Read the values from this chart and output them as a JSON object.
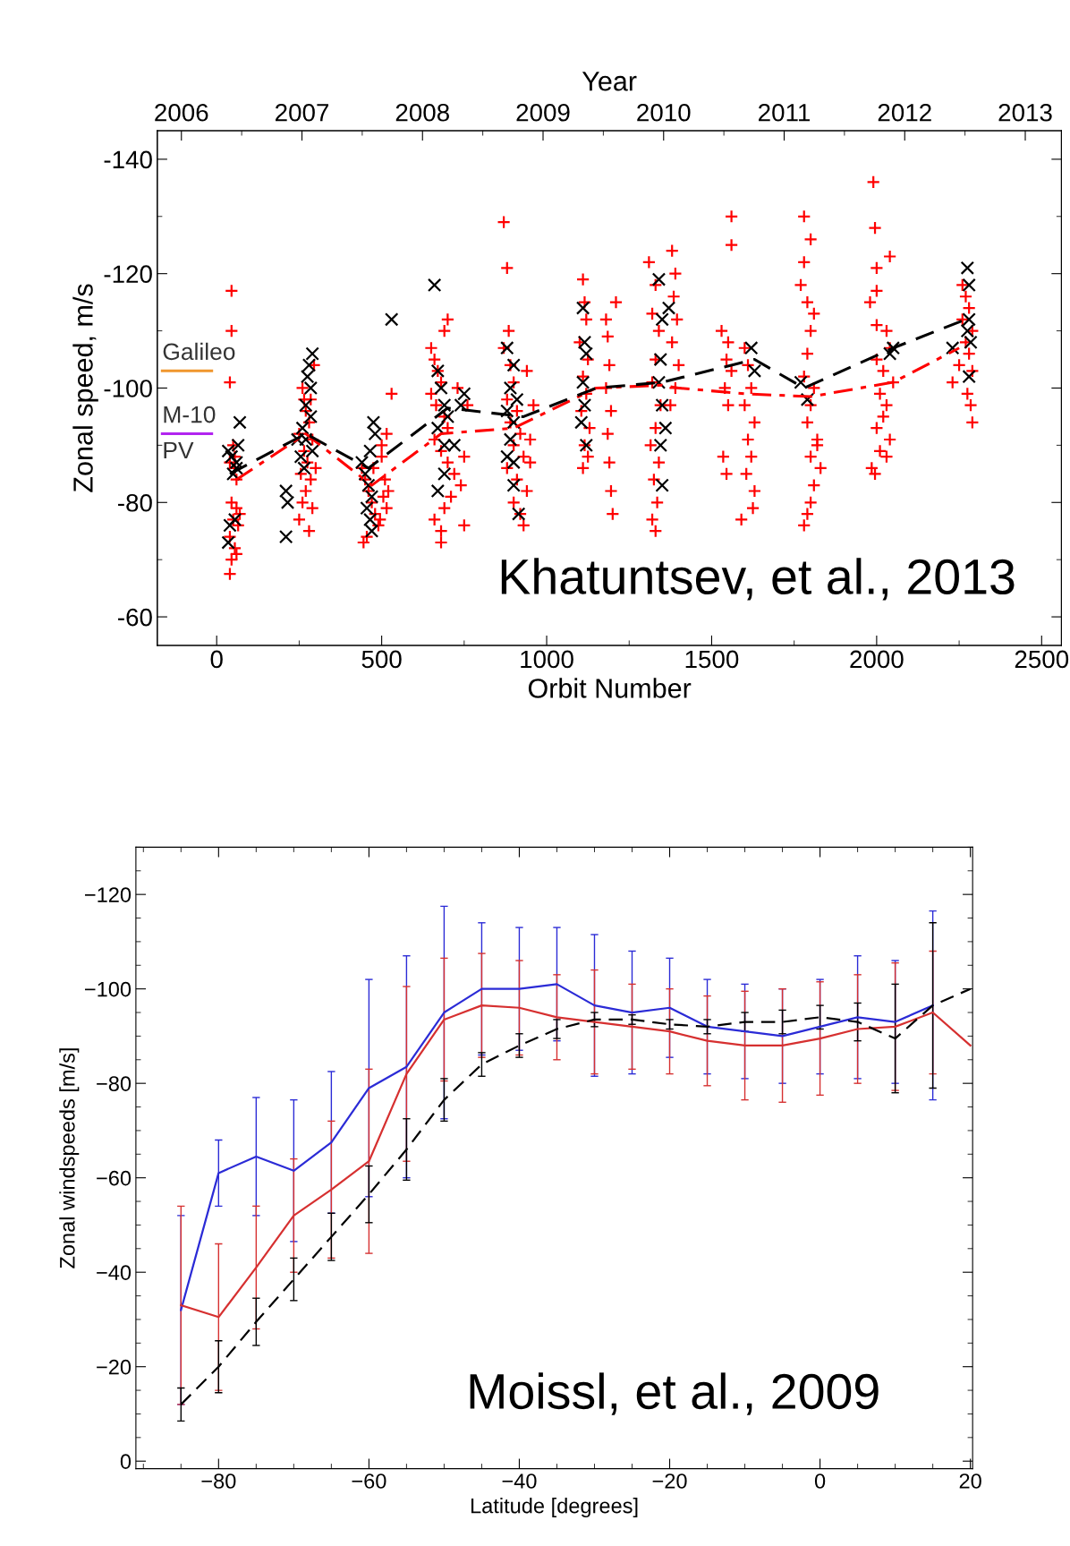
{
  "chart_data": [
    {
      "type": "scatter",
      "xlabel": "Orbit Number",
      "ylabel": "Zonal speed, m/s",
      "x2label": "Year",
      "xlim": [
        -180,
        2560
      ],
      "xticks": [
        0,
        500,
        1000,
        1500,
        2000,
        2500
      ],
      "ylim": [
        -55,
        -145
      ],
      "yticks": [
        -140,
        -120,
        -100,
        -80,
        -60
      ],
      "x2lim": [
        2005.8,
        2013.3
      ],
      "x2ticks": [
        2006,
        2007,
        2008,
        2009,
        2010,
        2011,
        2012,
        2013
      ],
      "grid": false,
      "legend": false,
      "annotations": [
        "Khatuntsev, et al., 2013",
        "PV"
      ],
      "series": [
        {
          "type": "scatter",
          "marker": "plus",
          "color": "#ff0000",
          "x": [
            45,
            45,
            40,
            50,
            40,
            55,
            60,
            45,
            60,
            50,
            65,
            40,
            55,
            45,
            60,
            40,
            55,
            70,
            260,
            270,
            280,
            290,
            265,
            275,
            255,
            285,
            270,
            260,
            290,
            250,
            280,
            295,
            300,
            250,
            265,
            285,
            440,
            450,
            460,
            470,
            480,
            490,
            455,
            445,
            500,
            500,
            510,
            520,
            515,
            495,
            505,
            530,
            515,
            475,
            650,
            660,
            670,
            680,
            650,
            665,
            690,
            700,
            660,
            680,
            700,
            720,
            740,
            710,
            690,
            660,
            680,
            680,
            750,
            690,
            700,
            760,
            730,
            750,
            870,
            880,
            885,
            870,
            890,
            900,
            880,
            910,
            890,
            920,
            900,
            930,
            880,
            910,
            940,
            900,
            920,
            930,
            950,
            960,
            940,
            950,
            1110,
            1115,
            1120,
            1100,
            1125,
            1110,
            1120,
            1105,
            1130,
            1115,
            1125,
            1110,
            1180,
            1185,
            1190,
            1180,
            1195,
            1185,
            1190,
            1195,
            1200,
            1210,
            1310,
            1330,
            1320,
            1340,
            1330,
            1320,
            1345,
            1330,
            1315,
            1340,
            1325,
            1335,
            1320,
            1330,
            1380,
            1390,
            1385,
            1395,
            1380,
            1400,
            1390,
            1375,
            1560,
            1560,
            1530,
            1550,
            1545,
            1560,
            1540,
            1550,
            1535,
            1545,
            1600,
            1610,
            1620,
            1600,
            1630,
            1610,
            1620,
            1605,
            1630,
            1625,
            1590,
            1780,
            1800,
            1780,
            1770,
            1790,
            1810,
            1800,
            1790,
            1780,
            1810,
            1800,
            1790,
            1820,
            1800,
            1830,
            1810,
            1800,
            1790,
            1780,
            1820,
            1990,
            1995,
            2000,
            2000,
            1980,
            2040,
            2000,
            2030,
            2040,
            2000,
            2020,
            2050,
            2010,
            2030,
            2020,
            2000,
            2040,
            2010,
            2030,
            1985,
            1995,
            2260,
            2270,
            2280,
            2260,
            2290,
            2270,
            2280,
            2250,
            2290,
            2230,
            2275,
            2285,
            2290
          ],
          "values": [
            -117,
            -110,
            -101,
            -90,
            -87,
            -86,
            -84,
            -80,
            -79,
            -77,
            -76,
            -74,
            -72,
            -70,
            -71,
            -67.5,
            -88,
            -78,
            -100,
            -96,
            -94,
            -91,
            -89,
            -87,
            -85,
            -84,
            -82,
            -80,
            -79,
            -77,
            -75,
            -104,
            -86,
            -92,
            -98,
            -98,
            -86,
            -84,
            -82,
            -80,
            -78,
            -76,
            -74,
            -73,
            -90,
            -88,
            -84,
            -82,
            -79,
            -77,
            -81,
            -99,
            -92,
            -86,
            -107,
            -105,
            -103,
            -101,
            -99,
            -97,
            -95,
            -93,
            -91,
            -89,
            -87,
            -85,
            -83,
            -81,
            -79,
            -77,
            -75,
            -73,
            -76,
            -110,
            -112,
            -97,
            -100,
            -88,
            -129,
            -121,
            -110,
            -107,
            -104,
            -101,
            -98,
            -96,
            -94,
            -92,
            -90,
            -88,
            -86,
            -84,
            -82,
            -80,
            -78,
            -76,
            -91,
            -97,
            -103,
            -87,
            -119,
            -115,
            -112,
            -108,
            -105,
            -102,
            -99,
            -96,
            -93,
            -90,
            -88,
            -86,
            -112,
            -109,
            -104,
            -100,
            -96,
            -92,
            -87,
            -82,
            -78,
            -115,
            -122,
            -118,
            -113,
            -110,
            -105,
            -101,
            -97,
            -93,
            -90,
            -87,
            -84,
            -80,
            -77,
            -75,
            -124,
            -120,
            -116,
            -112,
            -108,
            -104,
            -100,
            -97,
            -130,
            -125,
            -110,
            -108,
            -105,
            -103,
            -100,
            -97,
            -88,
            -85,
            -107,
            -104,
            -100,
            -97,
            -94,
            -91,
            -88,
            -85,
            -82,
            -79,
            -77,
            -130,
            -126,
            -122,
            -118,
            -115,
            -113,
            -110,
            -106,
            -102,
            -100,
            -97,
            -94,
            -91,
            -88,
            -86,
            -83,
            -80,
            -78,
            -76,
            -90,
            -136,
            -128,
            -121,
            -117,
            -115,
            -123,
            -111,
            -110,
            -107,
            -105,
            -103,
            -101,
            -99,
            -97,
            -95,
            -93,
            -91,
            -89,
            -88,
            -86,
            -85,
            -118,
            -116,
            -114,
            -112,
            -110,
            -108,
            -106,
            -104,
            -103,
            -101,
            -99,
            -97,
            -94
          ]
        },
        {
          "type": "scatter",
          "marker": "cross",
          "color": "#000000",
          "x": [
            35,
            45,
            50,
            60,
            65,
            70,
            40,
            55,
            35,
            60,
            210,
            215,
            210,
            245,
            255,
            260,
            270,
            275,
            280,
            290,
            285,
            270,
            265,
            285,
            290,
            440,
            450,
            460,
            470,
            455,
            465,
            470,
            475,
            465,
            480,
            530,
            660,
            670,
            680,
            690,
            700,
            670,
            690,
            670,
            720,
            740,
            750,
            690,
            880,
            900,
            890,
            880,
            900,
            890,
            910,
            880,
            900,
            915,
            900,
            1110,
            1115,
            1120,
            1110,
            1115,
            1105,
            1120,
            1340,
            1350,
            1345,
            1340,
            1350,
            1360,
            1345,
            1350,
            1370,
            1620,
            1630,
            1770,
            1790,
            2050,
            2040,
            2230,
            2275,
            2280,
            2280,
            2275,
            2285,
            2280
          ],
          "values": [
            -89,
            -88,
            -85,
            -87,
            -90,
            -94,
            -76,
            -77,
            -73,
            -86,
            -82,
            -80,
            -74,
            -91,
            -88,
            -93,
            -97,
            -102,
            -104,
            -106,
            -100,
            -91,
            -86,
            -95,
            -89,
            -87,
            -85,
            -83,
            -81,
            -79,
            -77,
            -75,
            -94,
            -89,
            -92,
            -112,
            -118,
            -103,
            -100,
            -97,
            -95,
            -93,
            -85,
            -82,
            -90,
            -97,
            -99,
            -90,
            -107,
            -104,
            -100,
            -96,
            -94,
            -91,
            -98,
            -88,
            -83,
            -78,
            -87,
            -114,
            -108,
            -106,
            -101,
            -97,
            -94,
            -90,
            -119,
            -112,
            -105,
            -101,
            -97,
            -93,
            -90,
            -83,
            -114,
            -107,
            -103,
            -101,
            -98,
            -107,
            -106,
            -107,
            -121,
            -118,
            -112,
            -110,
            -108,
            -102
          ]
        },
        {
          "type": "line",
          "line_style": "dashdot",
          "color": "#ff0000",
          "x": [
            60,
            270,
            470,
            680,
            900,
            1150,
            1350,
            1400,
            1600,
            1800,
            2050,
            2250
          ],
          "values": [
            -84,
            -92,
            -83,
            -92,
            -93,
            -100,
            -100.5,
            -100,
            -99,
            -98.5,
            -101,
            -107
          ]
        },
        {
          "type": "line",
          "line_style": "dashed",
          "color": "#000000",
          "x": [
            40,
            270,
            460,
            700,
            930,
            1150,
            1350,
            1630,
            1780,
            2050,
            2270
          ],
          "values": [
            -85,
            -92,
            -86,
            -96.5,
            -95,
            -100,
            -101,
            -105,
            -100,
            -107,
            -112
          ]
        },
        {
          "type": "line",
          "name": "Galileo",
          "line_style": "solid",
          "color": "#f0962e",
          "x": [
            -165,
            -15
          ],
          "values": [
            -103,
            -103
          ]
        },
        {
          "type": "line",
          "name": "M-10",
          "line_style": "solid",
          "color": "#b224f0",
          "x": [
            -165,
            -15
          ],
          "values": [
            -92,
            -92
          ]
        }
      ]
    },
    {
      "type": "line",
      "xlabel": "Latitude [degrees]",
      "ylabel": "Zonal windspeeds [m/s]",
      "xlim": [
        -91,
        20.3
      ],
      "xticks": [
        {
          "value": -80,
          "label": "−80"
        },
        {
          "value": -60,
          "label": "−60"
        },
        {
          "value": -40,
          "label": "−40"
        },
        {
          "value": -20,
          "label": "−20"
        },
        0,
        20
      ],
      "ylim": [
        1.6,
        -130
      ],
      "yticks": [
        0,
        {
          "value": -20,
          "label": "−20"
        },
        {
          "value": -40,
          "label": "−40"
        },
        {
          "value": -60,
          "label": "−60"
        },
        {
          "value": -80,
          "label": "−80"
        },
        {
          "value": -100,
          "label": "−100"
        },
        {
          "value": -120,
          "label": "−120"
        }
      ],
      "grid": false,
      "legend": false,
      "marker": "none",
      "annotations": [
        "Moissl, et al., 2009"
      ],
      "series": [
        {
          "color": "#2b2bd6",
          "line_style": "solid",
          "x": [
            -85,
            -80,
            -75,
            -70,
            -65,
            -60,
            -55,
            -50,
            -45,
            -40,
            -35,
            -30,
            -25,
            -20,
            -15,
            -10,
            -5,
            0,
            5,
            10,
            15
          ],
          "values": [
            -32,
            -61,
            -64.5,
            -61.5,
            -67.5,
            -79,
            -83.5,
            -95,
            -100,
            -100,
            -101,
            -96.5,
            -95,
            -96,
            -92,
            -91,
            -90,
            -92,
            -94,
            -93,
            -96.5
          ],
          "errors": [
            20,
            7,
            12.5,
            15,
            15,
            23,
            23.5,
            22.5,
            14,
            13,
            12,
            15,
            13,
            10.5,
            10,
            10,
            10,
            10,
            13,
            13,
            20
          ]
        },
        {
          "color": "#d63030",
          "line_style": "solid",
          "x": [
            -85,
            -80,
            -75,
            -70,
            -65,
            -60,
            -55,
            -50,
            -45,
            -40,
            -35,
            -30,
            -25,
            -20,
            -15,
            -10,
            -5,
            0,
            5,
            10,
            15,
            20
          ],
          "values": [
            -33,
            -30.5,
            -41,
            -52,
            -57.5,
            -63.5,
            -82,
            -93.5,
            -96.5,
            -96,
            -94,
            -93,
            -92,
            -91,
            -89,
            -88,
            -88,
            -89.5,
            -91.5,
            -92,
            -95,
            -88
          ],
          "errors": [
            21,
            15.5,
            13,
            12,
            14.5,
            19.5,
            18.5,
            13,
            11,
            10,
            9,
            11,
            9,
            9,
            9.5,
            11.5,
            12,
            12,
            11.5,
            13.5,
            13,
            null
          ]
        },
        {
          "color": "#000000",
          "line_style": "dashed",
          "x": [
            -85,
            -80,
            -75,
            -70,
            -65,
            -60,
            -55,
            -50,
            -45,
            -40,
            -35,
            -30,
            -25,
            -20,
            -15,
            -10,
            -5,
            0,
            5,
            10,
            15,
            20
          ],
          "values": [
            -12,
            -20,
            -29.5,
            -38.5,
            -47.5,
            -56.5,
            -66,
            -76.5,
            -84,
            -88,
            -91.5,
            -93.5,
            -93.5,
            -92.5,
            -92,
            -93,
            -93,
            -94,
            -93,
            -89.5,
            -96.5,
            -100
          ],
          "errors": [
            3.5,
            5.5,
            5,
            4.5,
            5,
            6,
            6.5,
            4.5,
            2.5,
            2.5,
            2,
            1.5,
            1,
            1,
            1.5,
            2,
            2.5,
            2.5,
            4,
            11.5,
            17.5,
            null
          ]
        }
      ]
    }
  ]
}
